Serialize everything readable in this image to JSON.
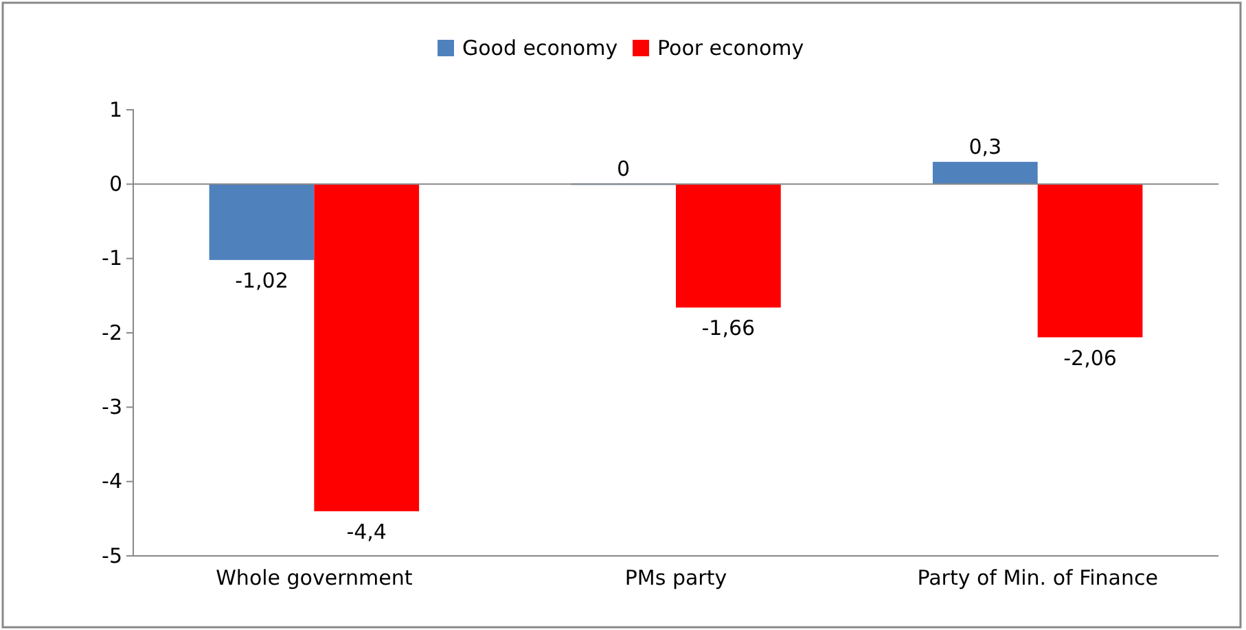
{
  "chart_data": {
    "type": "bar",
    "categories": [
      "Whole government",
      "PMs party",
      "Party of Min. of Finance"
    ],
    "series": [
      {
        "name": "Good economy",
        "color": "#4f81bd",
        "values": [
          -1.02,
          0,
          0.3
        ],
        "value_labels": [
          "-1,02",
          "0",
          "0,3"
        ]
      },
      {
        "name": "Poor economy",
        "color": "#ff0000",
        "values": [
          -4.4,
          -1.66,
          -2.06
        ],
        "value_labels": [
          "-4,4",
          "-1,66",
          "-2,06"
        ]
      }
    ],
    "ylim": [
      -5,
      1
    ],
    "yticks": [
      -5,
      -4,
      -3,
      -2,
      -1,
      0,
      1
    ],
    "legend": "top"
  }
}
